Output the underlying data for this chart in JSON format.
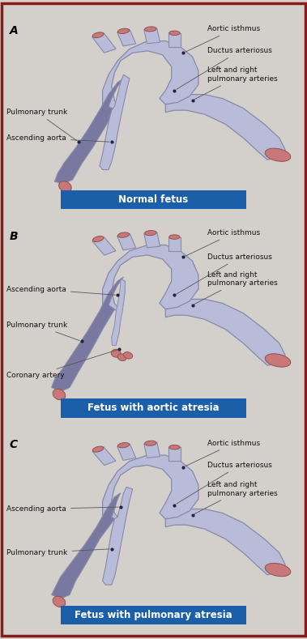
{
  "bg_color": "#d3d0cb",
  "border_color": "#8B1A1A",
  "vessel_fill": "#b8bcd8",
  "vessel_edge": "#8888aa",
  "vessel_dark": "#9090b8",
  "vessel_darker": "#7878a0",
  "tip_fill": "#c87878",
  "tip_edge": "#905050",
  "label_color": "#111111",
  "label_fontsize": 6.5,
  "section_label_fontsize": 10,
  "banner_color": "#1a5fa8",
  "banner_text_color": "#ffffff",
  "banner_fontsize": 8.5,
  "panels": [
    "A",
    "B",
    "C"
  ],
  "banners": [
    "Normal fetus",
    "Fetus with aortic atresia",
    "Fetus with pulmonary atresia"
  ]
}
